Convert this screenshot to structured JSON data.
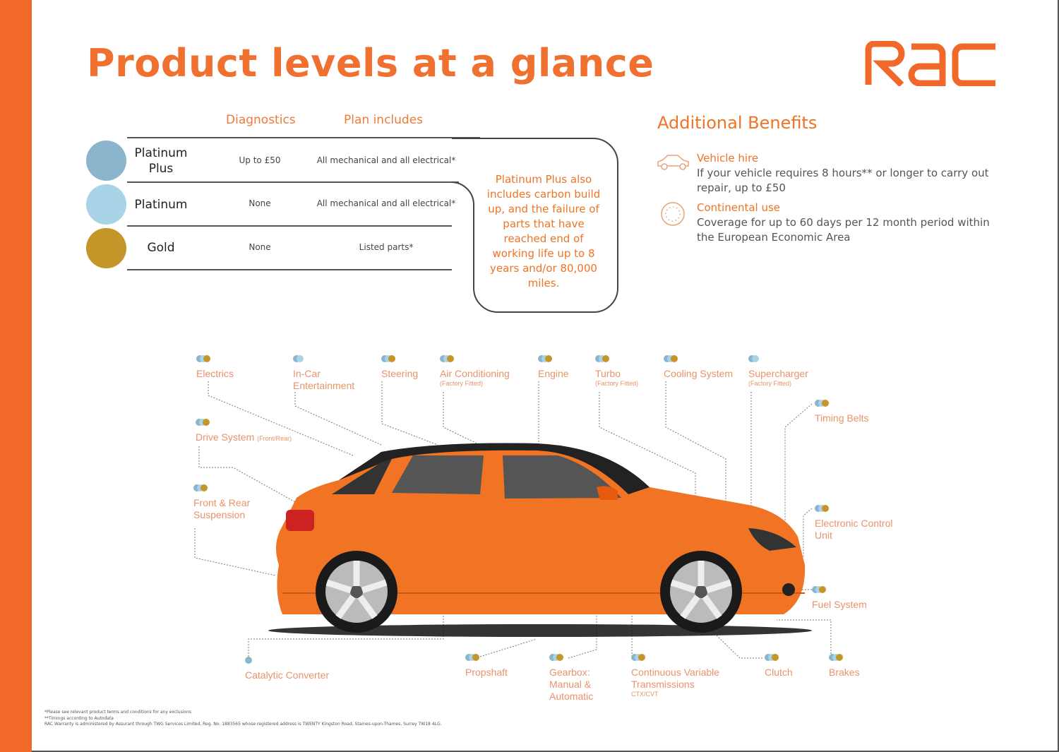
{
  "title": "Product levels at a glance",
  "logo": "RAC",
  "colors": {
    "brand_orange": "#f0692a",
    "platinum_plus": "#8ab5cc",
    "platinum": "#a9d3e6",
    "gold": "#c4962a"
  },
  "table": {
    "headers": {
      "diagnostics": "Diagnostics",
      "plan": "Plan includes"
    },
    "rows": [
      {
        "tier": "Platinum Plus",
        "diagnostics": "Up to £50",
        "plan": "All mechanical and all electrical*"
      },
      {
        "tier": "Platinum",
        "diagnostics": "None",
        "plan": "All mechanical and all electrical*"
      },
      {
        "tier": "Gold",
        "diagnostics": "None",
        "plan": "Listed parts*"
      }
    ],
    "note": "Platinum Plus also includes carbon build up, and the failure of parts that have reached end of working life up to 8 years and/or 80,000 miles."
  },
  "benefits": {
    "title": "Additional Benefits",
    "items": [
      {
        "icon": "car-icon",
        "heading": "Vehicle hire",
        "text": "If your vehicle requires 8 hours** or longer to carry out repair, up to £50"
      },
      {
        "icon": "eu-stars-icon",
        "heading": "Continental use",
        "text": "Coverage for up to 60 days per 12 month period within the European Economic Area"
      }
    ]
  },
  "parts": [
    {
      "label": "Electrics",
      "tiers": [
        "pp",
        "p",
        "g"
      ]
    },
    {
      "label": "In-Car Entertainment",
      "tiers": [
        "pp",
        "p"
      ]
    },
    {
      "label": "Steering",
      "tiers": [
        "pp",
        "p",
        "g"
      ]
    },
    {
      "label": "Air Conditioning",
      "sub": "(Factory Fitted)",
      "tiers": [
        "pp",
        "p",
        "g"
      ]
    },
    {
      "label": "Engine",
      "tiers": [
        "pp",
        "p",
        "g"
      ]
    },
    {
      "label": "Turbo",
      "sub": "(Factory Fitted)",
      "tiers": [
        "pp",
        "p",
        "g"
      ]
    },
    {
      "label": "Cooling System",
      "tiers": [
        "pp",
        "p",
        "g"
      ]
    },
    {
      "label": "Supercharger",
      "sub": "(Factory Fitted)",
      "tiers": [
        "pp",
        "p"
      ]
    },
    {
      "label": "Timing Belts",
      "tiers": [
        "pp",
        "p",
        "g"
      ]
    },
    {
      "label": "Drive System",
      "sub": "(Front/Rear)",
      "tiers": [
        "pp",
        "p",
        "g"
      ]
    },
    {
      "label": "Front & Rear Suspension",
      "tiers": [
        "pp",
        "p",
        "g"
      ]
    },
    {
      "label": "Electronic Control Unit",
      "tiers": [
        "pp",
        "p",
        "g"
      ]
    },
    {
      "label": "Fuel System",
      "tiers": [
        "pp",
        "p",
        "g"
      ]
    },
    {
      "label": "Catalytic Converter",
      "tiers": [
        "pp"
      ]
    },
    {
      "label": "Propshaft",
      "tiers": [
        "pp",
        "p",
        "g"
      ]
    },
    {
      "label": "Gearbox: Manual & Automatic",
      "tiers": [
        "pp",
        "p",
        "g"
      ]
    },
    {
      "label": "Continuous Variable Transmissions",
      "sub": "CTX/CVT",
      "tiers": [
        "pp",
        "p",
        "g"
      ]
    },
    {
      "label": "Clutch",
      "tiers": [
        "pp",
        "p",
        "g"
      ]
    },
    {
      "label": "Brakes",
      "tiers": [
        "pp",
        "p",
        "g"
      ]
    }
  ],
  "footnotes": [
    "*Please see relevant product terms and conditions for any exclusions",
    "**Timings according to Autodata",
    "RAC Warranty is administered by Assurant through TWG Services Limited, Reg. No. 1883565 whose registered address is TWENTY Kingston Road, Staines-upon-Thames, Surrey TW18 4LG."
  ]
}
